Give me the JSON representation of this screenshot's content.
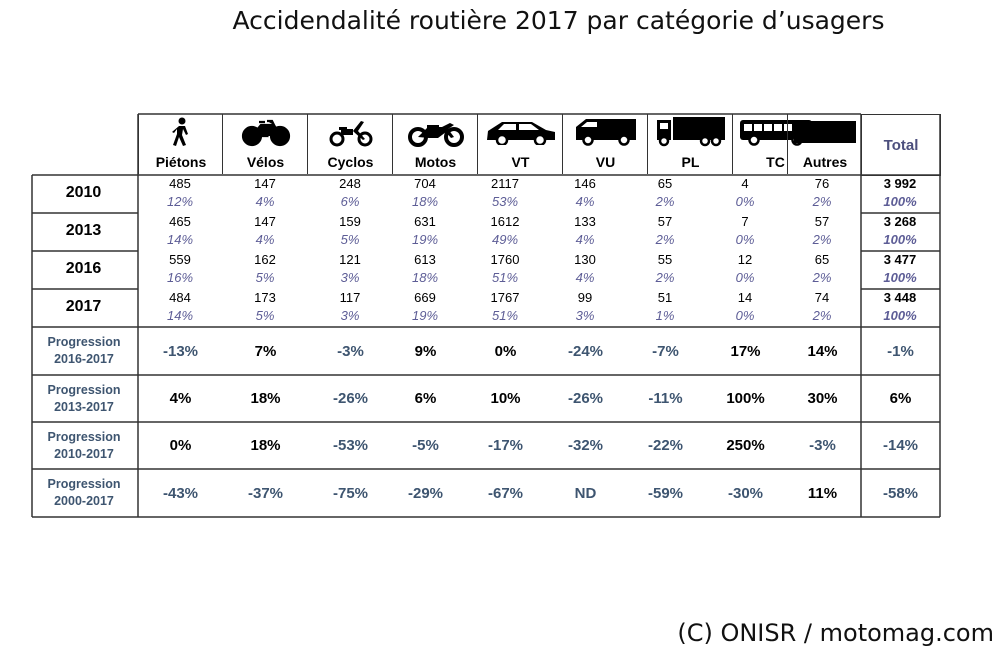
{
  "title": "Accidendalité routière 2017 par catégorie d’usagers",
  "credit": "(C) ONISR / motomag.com",
  "colors": {
    "text": "#000000",
    "percent": "#5d5d96",
    "negative": "#3e5570",
    "total_header": "#4c4f7d"
  },
  "categories": [
    {
      "label": "Piétons",
      "icon": "pedestrian-icon"
    },
    {
      "label": "Vélos",
      "icon": "bicycle-icon"
    },
    {
      "label": "Cyclos",
      "icon": "moped-icon"
    },
    {
      "label": "Motos",
      "icon": "motorcycle-icon"
    },
    {
      "label": "VT",
      "icon": "car-icon"
    },
    {
      "label": "VU",
      "icon": "van-icon"
    },
    {
      "label": "PL",
      "icon": "truck-icon"
    },
    {
      "label": "TC",
      "icon": "bus-icon"
    },
    {
      "label": "Autres",
      "icon": "other-block-icon"
    }
  ],
  "total_label": "Total",
  "years": [
    {
      "year": "2010",
      "values": [
        "485",
        "147",
        "248",
        "704",
        "2117",
        "146",
        "65",
        "4",
        "76"
      ],
      "percents": [
        "12%",
        "4%",
        "6%",
        "18%",
        "53%",
        "4%",
        "2%",
        "0%",
        "2%"
      ],
      "total": "3 992",
      "total_pct": "100%"
    },
    {
      "year": "2013",
      "values": [
        "465",
        "147",
        "159",
        "631",
        "1612",
        "133",
        "57",
        "7",
        "57"
      ],
      "percents": [
        "14%",
        "4%",
        "5%",
        "19%",
        "49%",
        "4%",
        "2%",
        "0%",
        "2%"
      ],
      "total": "3 268",
      "total_pct": "100%"
    },
    {
      "year": "2016",
      "values": [
        "559",
        "162",
        "121",
        "613",
        "1760",
        "130",
        "55",
        "12",
        "65"
      ],
      "percents": [
        "16%",
        "5%",
        "3%",
        "18%",
        "51%",
        "4%",
        "2%",
        "0%",
        "2%"
      ],
      "total": "3 477",
      "total_pct": "100%"
    },
    {
      "year": "2017",
      "values": [
        "484",
        "173",
        "117",
        "669",
        "1767",
        "99",
        "51",
        "14",
        "74"
      ],
      "percents": [
        "14%",
        "5%",
        "3%",
        "19%",
        "51%",
        "3%",
        "1%",
        "0%",
        "2%"
      ],
      "total": "3 448",
      "total_pct": "100%"
    }
  ],
  "progressions": [
    {
      "label1": "Progression",
      "label2": "2016-2017",
      "values": [
        "-13%",
        "7%",
        "-3%",
        "9%",
        "0%",
        "-24%",
        "-7%",
        "17%",
        "14%"
      ],
      "total": "-1%"
    },
    {
      "label1": "Progression",
      "label2": "2013-2017",
      "values": [
        "4%",
        "18%",
        "-26%",
        "6%",
        "10%",
        "-26%",
        "-11%",
        "100%",
        "30%"
      ],
      "total": "6%"
    },
    {
      "label1": "Progression",
      "label2": "2010-2017",
      "values": [
        "0%",
        "18%",
        "-53%",
        "-5%",
        "-17%",
        "-32%",
        "-22%",
        "250%",
        "-3%"
      ],
      "total": "-14%"
    },
    {
      "label1": "Progression",
      "label2": "2000-2017",
      "values": [
        "-43%",
        "-37%",
        "-75%",
        "-29%",
        "-67%",
        "ND",
        "-59%",
        "-30%",
        "11%"
      ],
      "total": "-58%"
    }
  ],
  "chart_data": {
    "type": "table",
    "title": "Accidendalité routière 2017 par catégorie d’usagers",
    "columns": [
      "Piétons",
      "Vélos",
      "Cyclos",
      "Motos",
      "VT",
      "VU",
      "PL",
      "TC",
      "Autres",
      "Total"
    ],
    "rows": [
      {
        "row": "2010",
        "values": [
          485,
          147,
          248,
          704,
          2117,
          146,
          65,
          4,
          76,
          3992
        ],
        "shares": [
          "12%",
          "4%",
          "6%",
          "18%",
          "53%",
          "4%",
          "2%",
          "0%",
          "2%",
          "100%"
        ]
      },
      {
        "row": "2013",
        "values": [
          465,
          147,
          159,
          631,
          1612,
          133,
          57,
          7,
          57,
          3268
        ],
        "shares": [
          "14%",
          "4%",
          "5%",
          "19%",
          "49%",
          "4%",
          "2%",
          "0%",
          "2%",
          "100%"
        ]
      },
      {
        "row": "2016",
        "values": [
          559,
          162,
          121,
          613,
          1760,
          130,
          55,
          12,
          65,
          3477
        ],
        "shares": [
          "16%",
          "5%",
          "3%",
          "18%",
          "51%",
          "4%",
          "2%",
          "0%",
          "2%",
          "100%"
        ]
      },
      {
        "row": "2017",
        "values": [
          484,
          173,
          117,
          669,
          1767,
          99,
          51,
          14,
          74,
          3448
        ],
        "shares": [
          "14%",
          "5%",
          "3%",
          "19%",
          "51%",
          "3%",
          "1%",
          "0%",
          "2%",
          "100%"
        ]
      },
      {
        "row": "Progression 2016-2017",
        "values": [
          "-13%",
          "7%",
          "-3%",
          "9%",
          "0%",
          "-24%",
          "-7%",
          "17%",
          "14%",
          "-1%"
        ]
      },
      {
        "row": "Progression 2013-2017",
        "values": [
          "4%",
          "18%",
          "-26%",
          "6%",
          "10%",
          "-26%",
          "-11%",
          "100%",
          "30%",
          "6%"
        ]
      },
      {
        "row": "Progression 2010-2017",
        "values": [
          "0%",
          "18%",
          "-53%",
          "-5%",
          "-17%",
          "-32%",
          "-22%",
          "250%",
          "-3%",
          "-14%"
        ]
      },
      {
        "row": "Progression 2000-2017",
        "values": [
          "-43%",
          "-37%",
          "-75%",
          "-29%",
          "-67%",
          "ND",
          "-59%",
          "-30%",
          "11%",
          "-58%"
        ]
      }
    ]
  }
}
